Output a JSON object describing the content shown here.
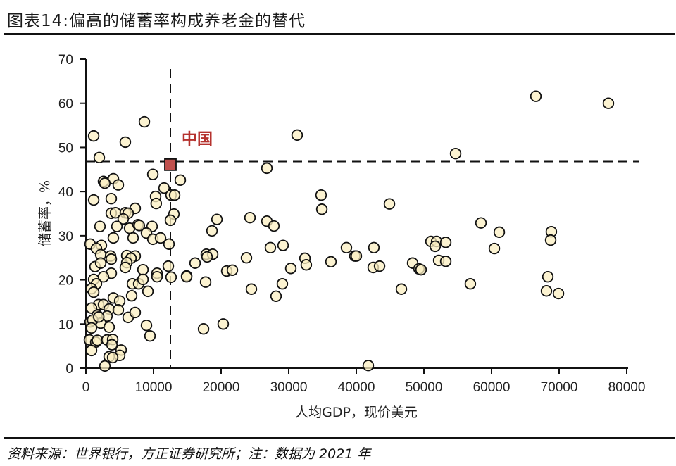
{
  "title": "图表14:偏高的储蓄率构成养老金的替代",
  "source": "资料来源：世界银行，方正证券研究所；注：数据为 2021 年",
  "colors": {
    "point_fill": "#FBEFC2",
    "point_stroke": "#111111",
    "china_fill": "#C0504D",
    "china_label": "#B5322E",
    "axis": "#111111"
  },
  "chart_data": {
    "type": "scatter",
    "title": "偏高的储蓄率构成养老金的替代",
    "xlabel": "人均GDP，现价美元",
    "ylabel": "储蓄率，%",
    "xlim": [
      0,
      80000
    ],
    "ylim": [
      0,
      70
    ],
    "xticks": [
      0,
      10000,
      20000,
      30000,
      40000,
      50000,
      60000,
      70000,
      80000
    ],
    "yticks": [
      0,
      10,
      20,
      30,
      40,
      50,
      60,
      70
    ],
    "grid": false,
    "legend": null,
    "reference_lines": {
      "vertical_x": 12500,
      "horizontal_y": 46.8
    },
    "highlight": {
      "label": "中国",
      "x": 12500,
      "y": 46.1
    },
    "points": [
      [
        8650,
        55.8
      ],
      [
        1150,
        52.6
      ],
      [
        5830,
        51.2
      ],
      [
        1980,
        47.7
      ],
      [
        9900,
        43.9
      ],
      [
        13960,
        42.6
      ],
      [
        4060,
        42.9
      ],
      [
        2600,
        42.3
      ],
      [
        2800,
        41.9
      ],
      [
        4790,
        41.5
      ],
      [
        11560,
        40.8
      ],
      [
        1150,
        38.1
      ],
      [
        3750,
        38.4
      ],
      [
        10310,
        38.9
      ],
      [
        12600,
        39.2
      ],
      [
        13125,
        39.2
      ],
      [
        10400,
        37.3
      ],
      [
        7290,
        36.2
      ],
      [
        3750,
        35.1
      ],
      [
        4375,
        35.2
      ],
      [
        5830,
        35.2
      ],
      [
        6250,
        35.1
      ],
      [
        5520,
        33.8
      ],
      [
        13020,
        34.9
      ],
      [
        12500,
        33.5
      ],
      [
        2080,
        32.1
      ],
      [
        4580,
        32.1
      ],
      [
        6460,
        31.7
      ],
      [
        7710,
        32.5
      ],
      [
        7900,
        32.3
      ],
      [
        9790,
        32.1
      ],
      [
        8960,
        30.6
      ],
      [
        4060,
        29.5
      ],
      [
        6980,
        29.5
      ],
      [
        9900,
        29.2
      ],
      [
        11040,
        29.5
      ],
      [
        12290,
        28.1
      ],
      [
        625,
        28.1
      ],
      [
        2290,
        27.8
      ],
      [
        1560,
        27.1
      ],
      [
        2190,
        25.7
      ],
      [
        3650,
        25.4
      ],
      [
        3750,
        24.7
      ],
      [
        6040,
        25.5
      ],
      [
        7290,
        25.4
      ],
      [
        6670,
        24.9
      ],
      [
        6040,
        23.9
      ],
      [
        12190,
        23.1
      ],
      [
        16150,
        23.8
      ],
      [
        1350,
        23.0
      ],
      [
        2190,
        23.8
      ],
      [
        3750,
        21.5
      ],
      [
        8440,
        22.3
      ],
      [
        10520,
        21.5
      ],
      [
        12600,
        20.6
      ],
      [
        14900,
        20.9
      ],
      [
        5830,
        22.8
      ],
      [
        2600,
        20.7
      ],
      [
        1150,
        20.1
      ],
      [
        1560,
        19.1
      ],
      [
        830,
        18.0
      ],
      [
        1150,
        17.2
      ],
      [
        6880,
        19.1
      ],
      [
        7810,
        19.1
      ],
      [
        8440,
        20.1
      ],
      [
        9170,
        17.4
      ],
      [
        6770,
        16.4
      ],
      [
        10520,
        20.7
      ],
      [
        4060,
        15.9
      ],
      [
        5000,
        15.2
      ],
      [
        1875,
        14.4
      ],
      [
        2600,
        14.4
      ],
      [
        830,
        13.6
      ],
      [
        3440,
        13.4
      ],
      [
        4790,
        13.2
      ],
      [
        1670,
        12.0
      ],
      [
        3125,
        11.8
      ],
      [
        625,
        10.5
      ],
      [
        2190,
        10.2
      ],
      [
        1000,
        10.9
      ],
      [
        1900,
        11.6
      ],
      [
        6250,
        11.5
      ],
      [
        7290,
        12.6
      ],
      [
        8960,
        9.7
      ],
      [
        9480,
        7.3
      ],
      [
        3440,
        9.3
      ],
      [
        830,
        9.1
      ],
      [
        520,
        6.4
      ],
      [
        1460,
        5.9
      ],
      [
        1700,
        6.3
      ],
      [
        3125,
        6.4
      ],
      [
        3960,
        6.5
      ],
      [
        3850,
        5.3
      ],
      [
        830,
        4.0
      ],
      [
        5210,
        4.1
      ],
      [
        5000,
        2.9
      ],
      [
        3440,
        2.6
      ],
      [
        3960,
        2.4
      ],
      [
        2810,
        0.5
      ],
      [
        31250,
        52.8
      ],
      [
        26770,
        45.3
      ],
      [
        34790,
        39.2
      ],
      [
        34900,
        36.0
      ],
      [
        19380,
        33.7
      ],
      [
        24270,
        34.1
      ],
      [
        26770,
        33.3
      ],
      [
        27810,
        32.2
      ],
      [
        18650,
        31.1
      ],
      [
        27290,
        27.3
      ],
      [
        29170,
        27.8
      ],
      [
        17810,
        25.8
      ],
      [
        18750,
        25.8
      ],
      [
        17920,
        25.2
      ],
      [
        23750,
        25.0
      ],
      [
        32400,
        24.9
      ],
      [
        32600,
        23.4
      ],
      [
        30310,
        22.6
      ],
      [
        36250,
        24.1
      ],
      [
        38540,
        27.3
      ],
      [
        39790,
        25.4
      ],
      [
        20830,
        22.0
      ],
      [
        21670,
        22.2
      ],
      [
        14900,
        20.7
      ],
      [
        17710,
        19.5
      ],
      [
        24480,
        17.9
      ],
      [
        29060,
        19.1
      ],
      [
        28125,
        16.3
      ],
      [
        17400,
        8.9
      ],
      [
        20310,
        10.0
      ],
      [
        44900,
        37.2
      ],
      [
        58440,
        32.9
      ],
      [
        61150,
        30.8
      ],
      [
        60420,
        27.1
      ],
      [
        51040,
        28.7
      ],
      [
        51880,
        28.7
      ],
      [
        53230,
        28.5
      ],
      [
        51670,
        27.6
      ],
      [
        42600,
        27.3
      ],
      [
        40000,
        25.4
      ],
      [
        42500,
        22.8
      ],
      [
        43440,
        23.1
      ],
      [
        48330,
        23.8
      ],
      [
        49270,
        22.5
      ],
      [
        49580,
        22.3
      ],
      [
        52190,
        24.4
      ],
      [
        53230,
        24.2
      ],
      [
        46670,
        17.9
      ],
      [
        56870,
        19.1
      ],
      [
        66560,
        61.6
      ],
      [
        77290,
        60.0
      ],
      [
        54690,
        48.6
      ],
      [
        68850,
        30.9
      ],
      [
        68750,
        29.0
      ],
      [
        68330,
        20.7
      ],
      [
        68125,
        17.5
      ],
      [
        69900,
        16.9
      ],
      [
        41770,
        0.6
      ]
    ]
  }
}
